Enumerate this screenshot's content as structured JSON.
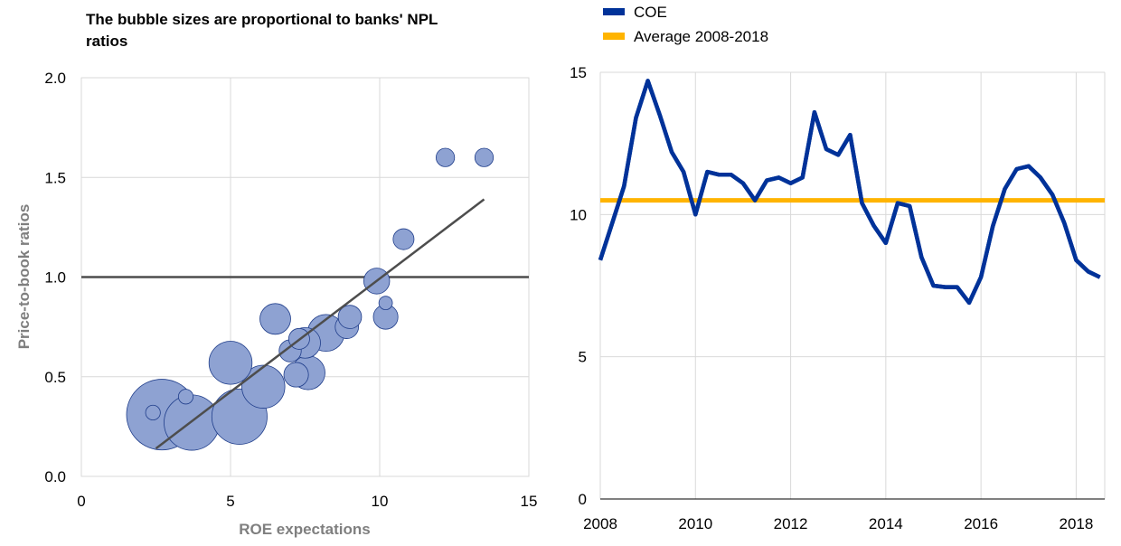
{
  "chart_data": [
    {
      "type": "scatter",
      "title": "The bubble sizes are proportional to banks' NPL ratios",
      "xlabel": "ROE expectations",
      "ylabel": "Price-to-book ratios",
      "xlim": [
        0,
        15
      ],
      "ylim": [
        0,
        2
      ],
      "x_ticks": [
        0,
        5,
        10,
        15
      ],
      "x_tick_labels": [
        "0",
        "5",
        "10",
        "15"
      ],
      "y_ticks": [
        0,
        0.5,
        1.0,
        1.5,
        2.0
      ],
      "y_tick_labels": [
        "0.0",
        "0.5",
        "1.0",
        "1.5",
        "2.0"
      ],
      "grid": true,
      "reference_line_y": 1.0,
      "bubble_color": "#8ea2d2",
      "bubble_edge": "#1f3d8a",
      "line_color": "#4d4d4d",
      "points": [
        {
          "x": 2.7,
          "y": 0.31,
          "size": 11.5
        },
        {
          "x": 3.7,
          "y": 0.27,
          "size": 9.0
        },
        {
          "x": 5.3,
          "y": 0.3,
          "size": 9.0
        },
        {
          "x": 6.1,
          "y": 0.45,
          "size": 7.0
        },
        {
          "x": 5.0,
          "y": 0.57,
          "size": 7.0
        },
        {
          "x": 7.6,
          "y": 0.52,
          "size": 5.5
        },
        {
          "x": 8.2,
          "y": 0.72,
          "size": 6.0
        },
        {
          "x": 7.5,
          "y": 0.67,
          "size": 5.0
        },
        {
          "x": 6.5,
          "y": 0.79,
          "size": 5.0
        },
        {
          "x": 7.2,
          "y": 0.51,
          "size": 4.0
        },
        {
          "x": 7.0,
          "y": 0.63,
          "size": 3.6
        },
        {
          "x": 7.3,
          "y": 0.69,
          "size": 3.4
        },
        {
          "x": 8.9,
          "y": 0.75,
          "size": 3.8
        },
        {
          "x": 9.0,
          "y": 0.8,
          "size": 3.8
        },
        {
          "x": 9.9,
          "y": 0.98,
          "size": 4.2
        },
        {
          "x": 10.2,
          "y": 0.8,
          "size": 4.0
        },
        {
          "x": 10.8,
          "y": 1.19,
          "size": 3.4
        },
        {
          "x": 10.2,
          "y": 0.87,
          "size": 2.2
        },
        {
          "x": 12.2,
          "y": 1.6,
          "size": 3.0
        },
        {
          "x": 13.5,
          "y": 1.6,
          "size": 3.0
        },
        {
          "x": 3.5,
          "y": 0.4,
          "size": 2.4
        },
        {
          "x": 2.4,
          "y": 0.32,
          "size": 2.4
        }
      ],
      "fit_line": [
        {
          "x": 2.5,
          "y": 0.14
        },
        {
          "x": 13.5,
          "y": 1.39
        }
      ]
    },
    {
      "type": "line",
      "xlim": [
        2008,
        2018.6
      ],
      "ylim": [
        0,
        15
      ],
      "x_ticks": [
        2008,
        2010,
        2012,
        2014,
        2016,
        2018
      ],
      "x_tick_labels": [
        "2008",
        "2010",
        "2012",
        "2014",
        "2016",
        "2018"
      ],
      "y_ticks": [
        0,
        5,
        10,
        15
      ],
      "y_tick_labels": [
        "0",
        "5",
        "10",
        "15"
      ],
      "grid": true,
      "legend": "top-left",
      "series": [
        {
          "name": "COE",
          "color": "#003299",
          "x": [
            2008.0,
            2008.25,
            2008.5,
            2008.75,
            2009.0,
            2009.25,
            2009.5,
            2009.75,
            2010.0,
            2010.25,
            2010.5,
            2010.75,
            2011.0,
            2011.25,
            2011.5,
            2011.75,
            2012.0,
            2012.25,
            2012.5,
            2012.75,
            2013.0,
            2013.25,
            2013.5,
            2013.75,
            2014.0,
            2014.25,
            2014.5,
            2014.75,
            2015.0,
            2015.25,
            2015.5,
            2015.75,
            2016.0,
            2016.25,
            2016.5,
            2016.75,
            2017.0,
            2017.25,
            2017.5,
            2017.75,
            2018.0,
            2018.25,
            2018.5
          ],
          "values": [
            8.4,
            9.7,
            11.0,
            13.4,
            14.7,
            13.5,
            12.2,
            11.5,
            10.0,
            11.5,
            11.4,
            11.4,
            11.1,
            10.5,
            11.2,
            11.3,
            11.1,
            11.3,
            13.6,
            12.3,
            12.1,
            12.8,
            10.4,
            9.6,
            9.0,
            10.4,
            10.3,
            8.5,
            7.5,
            7.45,
            7.45,
            6.9,
            7.8,
            9.6,
            10.9,
            11.6,
            11.7,
            11.3,
            10.7,
            9.7,
            8.4,
            8.0,
            7.8
          ]
        },
        {
          "name": "Average 2008-2018",
          "color": "#ffb400",
          "x": [
            2008.0,
            2018.6
          ],
          "values": [
            10.5,
            10.5
          ]
        }
      ]
    }
  ]
}
